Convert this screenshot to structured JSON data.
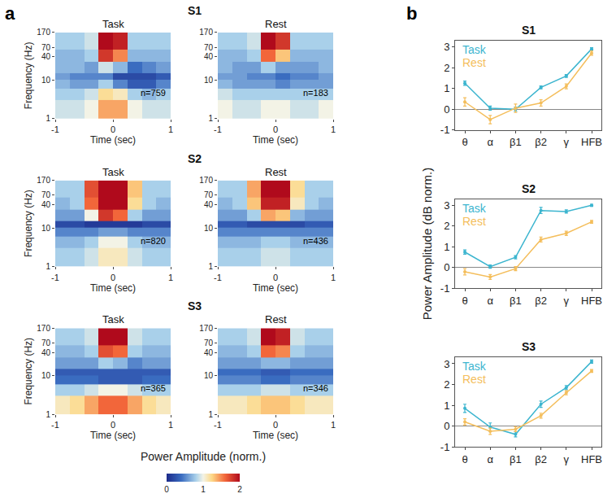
{
  "panel_labels": [
    "a",
    "b"
  ],
  "colorbar": {
    "title": "Power Amplitude (norm.)",
    "range": [
      0,
      2
    ],
    "ticks": [
      0,
      1,
      2
    ]
  },
  "chart_data": [
    {
      "type": "heatmap",
      "panel": "a",
      "group": "S1",
      "title": "Task",
      "x_label": "Time (sec)",
      "y_label": "Frequency (Hz)",
      "x": [
        -1,
        -0.75,
        -0.5,
        -0.25,
        0,
        0.25,
        0.5,
        0.75,
        1
      ],
      "y": [
        1,
        3,
        6,
        10,
        15,
        30,
        60,
        110,
        170
      ],
      "z": [
        [
          0.9,
          0.9,
          1.0,
          1.4,
          1.4,
          1.0,
          0.9,
          0.9
        ],
        [
          0.8,
          0.8,
          0.9,
          1.2,
          1.1,
          0.8,
          0.7,
          0.8
        ],
        [
          0.7,
          0.6,
          0.6,
          0.8,
          0.5,
          0.3,
          0.3,
          0.5
        ],
        [
          0.6,
          0.5,
          0.5,
          0.5,
          0.2,
          0.2,
          0.2,
          0.3
        ],
        [
          0.7,
          0.7,
          0.6,
          0.9,
          0.7,
          0.4,
          0.5,
          0.6
        ],
        [
          0.7,
          0.7,
          0.8,
          1.8,
          1.5,
          0.7,
          0.7,
          0.7
        ],
        [
          0.8,
          0.8,
          0.9,
          2.0,
          1.9,
          0.8,
          0.8,
          0.8
        ],
        [
          0.8,
          0.8,
          0.9,
          2.0,
          1.9,
          0.8,
          0.8,
          0.8
        ]
      ],
      "xlim": [
        -1,
        1
      ],
      "xticks": [
        -1,
        0,
        1
      ],
      "ylim": [
        1,
        170
      ],
      "yticks": [
        1,
        10,
        40,
        70,
        170
      ],
      "log": "y",
      "annotation": "n=759"
    },
    {
      "type": "heatmap",
      "panel": "a",
      "group": "S1",
      "title": "Rest",
      "x_label": "Time (sec)",
      "x": [
        -1,
        -0.75,
        -0.5,
        -0.25,
        0,
        0.25,
        0.5,
        0.75,
        1
      ],
      "y": [
        1,
        3,
        6,
        10,
        15,
        30,
        60,
        110,
        170
      ],
      "z": [
        [
          1.0,
          0.9,
          0.9,
          1.0,
          1.0,
          0.9,
          0.9,
          1.0
        ],
        [
          0.9,
          0.8,
          0.8,
          0.8,
          0.8,
          0.8,
          0.8,
          0.8
        ],
        [
          0.7,
          0.6,
          0.6,
          0.6,
          0.5,
          0.6,
          0.6,
          0.6
        ],
        [
          0.6,
          0.6,
          0.5,
          0.5,
          0.4,
          0.5,
          0.5,
          0.6
        ],
        [
          0.7,
          0.6,
          0.6,
          0.8,
          0.6,
          0.6,
          0.6,
          0.7
        ],
        [
          0.7,
          0.7,
          0.8,
          1.6,
          1.3,
          0.7,
          0.7,
          0.7
        ],
        [
          0.8,
          0.8,
          0.9,
          2.0,
          1.8,
          0.8,
          0.8,
          0.8
        ],
        [
          0.8,
          0.8,
          0.9,
          2.0,
          1.8,
          0.8,
          0.8,
          0.8
        ]
      ],
      "xlim": [
        -1,
        1
      ],
      "xticks": [
        -1,
        0,
        1
      ],
      "ylim": [
        1,
        170
      ],
      "yticks": [
        1,
        10,
        40,
        70,
        170
      ],
      "log": "y",
      "annotation": "n=183"
    },
    {
      "type": "heatmap",
      "panel": "a",
      "group": "S2",
      "title": "Task",
      "x_label": "Time (sec)",
      "y_label": "Frequency (Hz)",
      "x": [
        -1,
        -0.75,
        -0.5,
        -0.25,
        0,
        0.25,
        0.5,
        0.75,
        1
      ],
      "y": [
        1,
        3,
        6,
        10,
        15,
        30,
        60,
        110,
        170
      ],
      "z": [
        [
          0.8,
          0.8,
          0.9,
          1.1,
          1.1,
          0.9,
          0.8,
          0.8
        ],
        [
          0.7,
          0.7,
          0.8,
          1.0,
          1.0,
          0.8,
          0.7,
          0.7
        ],
        [
          0.5,
          0.5,
          0.5,
          0.6,
          0.6,
          0.5,
          0.5,
          0.5
        ],
        [
          0.2,
          0.2,
          0.1,
          0.1,
          0.1,
          0.1,
          0.2,
          0.2
        ],
        [
          0.6,
          0.6,
          1.0,
          1.8,
          1.6,
          0.8,
          0.6,
          0.6
        ],
        [
          0.7,
          0.8,
          1.6,
          2.0,
          2.0,
          1.2,
          0.8,
          0.7
        ],
        [
          0.8,
          0.8,
          1.7,
          2.0,
          2.0,
          1.3,
          0.8,
          0.8
        ],
        [
          0.8,
          0.8,
          1.7,
          2.0,
          2.0,
          1.3,
          0.8,
          0.8
        ]
      ],
      "xlim": [
        -1,
        1
      ],
      "xticks": [
        -1,
        0,
        1
      ],
      "ylim": [
        1,
        170
      ],
      "yticks": [
        1,
        10,
        40,
        70,
        170
      ],
      "log": "y",
      "annotation": "n=820"
    },
    {
      "type": "heatmap",
      "panel": "a",
      "group": "S2",
      "title": "Rest",
      "x_label": "Time (sec)",
      "x": [
        -1,
        -0.75,
        -0.5,
        -0.25,
        0,
        0.25,
        0.5,
        0.75,
        1
      ],
      "y": [
        1,
        3,
        6,
        10,
        15,
        30,
        60,
        110,
        170
      ],
      "z": [
        [
          0.8,
          0.8,
          0.8,
          0.9,
          0.9,
          0.8,
          0.8,
          0.8
        ],
        [
          0.7,
          0.7,
          0.7,
          0.8,
          0.8,
          0.7,
          0.7,
          0.7
        ],
        [
          0.5,
          0.5,
          0.5,
          0.5,
          0.5,
          0.5,
          0.5,
          0.5
        ],
        [
          0.3,
          0.3,
          0.2,
          0.2,
          0.2,
          0.2,
          0.3,
          0.3
        ],
        [
          0.6,
          0.6,
          0.8,
          1.4,
          1.3,
          0.7,
          0.6,
          0.6
        ],
        [
          0.7,
          0.8,
          1.3,
          1.9,
          1.9,
          1.1,
          0.8,
          0.7
        ],
        [
          0.8,
          0.8,
          1.4,
          2.0,
          2.0,
          1.2,
          0.8,
          0.8
        ],
        [
          0.8,
          0.8,
          1.4,
          2.0,
          2.0,
          1.2,
          0.8,
          0.8
        ]
      ],
      "xlim": [
        -1,
        1
      ],
      "xticks": [
        -1,
        0,
        1
      ],
      "ylim": [
        1,
        170
      ],
      "yticks": [
        1,
        10,
        40,
        70,
        170
      ],
      "log": "y",
      "annotation": "n=436"
    },
    {
      "type": "heatmap",
      "panel": "a",
      "group": "S3",
      "title": "Task",
      "x_label": "Time (sec)",
      "y_label": "Frequency (Hz)",
      "x": [
        -1,
        -0.75,
        -0.5,
        -0.25,
        0,
        0.25,
        0.5,
        0.75,
        1
      ],
      "y": [
        1,
        3,
        6,
        10,
        15,
        30,
        60,
        110,
        170
      ],
      "z": [
        [
          1.1,
          1.2,
          1.4,
          1.6,
          1.6,
          1.4,
          1.2,
          1.1
        ],
        [
          0.8,
          0.8,
          0.9,
          1.0,
          1.0,
          0.9,
          0.8,
          0.8
        ],
        [
          0.4,
          0.4,
          0.4,
          0.3,
          0.3,
          0.3,
          0.4,
          0.4
        ],
        [
          0.3,
          0.3,
          0.3,
          0.3,
          0.3,
          0.3,
          0.3,
          0.3
        ],
        [
          0.6,
          0.6,
          0.6,
          0.8,
          0.7,
          0.5,
          0.6,
          0.6
        ],
        [
          0.7,
          0.7,
          0.8,
          1.7,
          1.6,
          0.8,
          0.7,
          0.7
        ],
        [
          0.8,
          0.8,
          0.9,
          2.0,
          2.0,
          0.9,
          0.8,
          0.8
        ],
        [
          0.8,
          0.8,
          0.9,
          2.0,
          2.0,
          0.9,
          0.8,
          0.8
        ]
      ],
      "xlim": [
        -1,
        1
      ],
      "xticks": [
        -1,
        0,
        1
      ],
      "ylim": [
        1,
        170
      ],
      "yticks": [
        1,
        10,
        40,
        70,
        170
      ],
      "log": "y",
      "annotation": "n=365"
    },
    {
      "type": "heatmap",
      "panel": "a",
      "group": "S3",
      "title": "Rest",
      "x_label": "Time (sec)",
      "x": [
        -1,
        -0.75,
        -0.5,
        -0.25,
        0,
        0.25,
        0.5,
        0.75,
        1
      ],
      "y": [
        1,
        3,
        6,
        10,
        15,
        30,
        60,
        110,
        170
      ],
      "z": [
        [
          1.1,
          1.1,
          1.2,
          1.3,
          1.3,
          1.2,
          1.1,
          1.1
        ],
        [
          0.8,
          0.8,
          0.8,
          0.9,
          0.9,
          0.8,
          0.8,
          0.8
        ],
        [
          0.5,
          0.5,
          0.5,
          0.4,
          0.4,
          0.5,
          0.5,
          0.5
        ],
        [
          0.4,
          0.4,
          0.4,
          0.3,
          0.3,
          0.4,
          0.4,
          0.4
        ],
        [
          0.6,
          0.6,
          0.6,
          0.7,
          0.7,
          0.6,
          0.6,
          0.6
        ],
        [
          0.7,
          0.7,
          0.8,
          1.6,
          1.5,
          0.8,
          0.7,
          0.7
        ],
        [
          0.8,
          0.8,
          0.9,
          2.0,
          1.9,
          0.9,
          0.8,
          0.8
        ],
        [
          0.8,
          0.8,
          0.9,
          2.0,
          1.9,
          0.9,
          0.8,
          0.8
        ]
      ],
      "xlim": [
        -1,
        1
      ],
      "xticks": [
        -1,
        0,
        1
      ],
      "ylim": [
        1,
        170
      ],
      "yticks": [
        1,
        10,
        40,
        70,
        170
      ],
      "log": "y",
      "annotation": "n=346"
    },
    {
      "type": "line",
      "panel": "b",
      "title": "S1",
      "categories": [
        "θ",
        "α",
        "β1",
        "β2",
        "γ",
        "HFB"
      ],
      "series": [
        {
          "name": "Task",
          "color": "#3cb5cf",
          "marker": "circle",
          "line_style": "solid",
          "values": [
            1.25,
            0.05,
            0.0,
            1.05,
            1.6,
            2.9
          ],
          "errors": [
            0.1,
            0.1,
            0.1,
            0.07,
            0.07,
            0.06
          ]
        },
        {
          "name": "Rest",
          "color": "#f4be5c",
          "marker": "circle",
          "line_style": "solid",
          "values": [
            0.35,
            -0.5,
            0.05,
            0.3,
            1.1,
            2.7
          ],
          "errors": [
            0.2,
            0.2,
            0.2,
            0.15,
            0.12,
            0.1
          ]
        }
      ],
      "ylim": [
        -1,
        3.3
      ],
      "yticks": [
        -1,
        0,
        1,
        2,
        3
      ],
      "legend": "upper left"
    },
    {
      "type": "line",
      "panel": "b",
      "title": "S2",
      "categories": [
        "θ",
        "α",
        "β1",
        "β2",
        "γ",
        "HFB"
      ],
      "y_label": "Power Amplitude (dB norm.)",
      "series": [
        {
          "name": "Task",
          "color": "#3cb5cf",
          "marker": "circle",
          "line_style": "solid",
          "values": [
            0.75,
            0.05,
            0.5,
            2.75,
            2.7,
            3.0
          ],
          "errors": [
            0.1,
            0.08,
            0.08,
            0.15,
            0.08,
            0.05
          ]
        },
        {
          "name": "Rest",
          "color": "#f4be5c",
          "marker": "circle",
          "line_style": "solid",
          "values": [
            -0.2,
            -0.45,
            -0.05,
            1.35,
            1.65,
            2.2
          ],
          "errors": [
            0.15,
            0.12,
            0.1,
            0.12,
            0.1,
            0.07
          ]
        }
      ],
      "ylim": [
        -1,
        3.3
      ],
      "yticks": [
        -1,
        0,
        1,
        2,
        3
      ],
      "legend": "upper left"
    },
    {
      "type": "line",
      "panel": "b",
      "title": "S3",
      "categories": [
        "θ",
        "α",
        "β1",
        "β2",
        "γ",
        "HFB"
      ],
      "series": [
        {
          "name": "Task",
          "color": "#3cb5cf",
          "marker": "circle",
          "line_style": "solid",
          "values": [
            0.85,
            -0.05,
            -0.4,
            1.05,
            1.85,
            3.1
          ],
          "errors": [
            0.2,
            0.2,
            0.12,
            0.15,
            0.1,
            0.08
          ]
        },
        {
          "name": "Rest",
          "color": "#f4be5c",
          "marker": "circle",
          "line_style": "solid",
          "values": [
            0.2,
            -0.25,
            -0.15,
            0.5,
            1.6,
            2.65
          ],
          "errors": [
            0.15,
            0.15,
            0.12,
            0.12,
            0.1,
            0.07
          ]
        }
      ],
      "ylim": [
        -1,
        3.3
      ],
      "yticks": [
        -1,
        0,
        1,
        2,
        3
      ],
      "legend": "upper left"
    }
  ]
}
